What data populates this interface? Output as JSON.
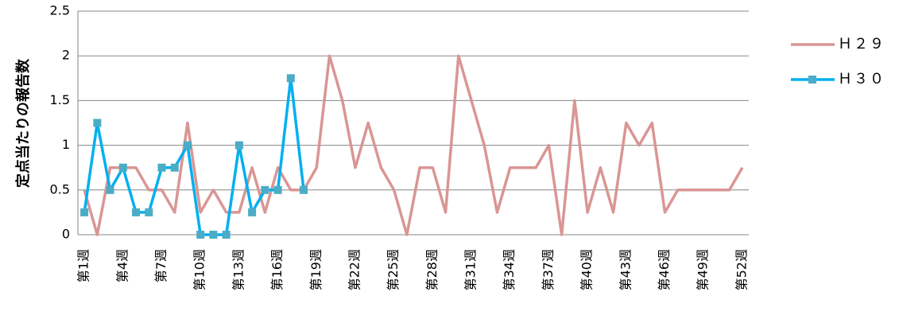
{
  "chart_data": {
    "type": "line",
    "y_label": "定点当たりの報告数",
    "categories": [
      "第1週",
      null,
      null,
      "第4週",
      null,
      null,
      "第7週",
      null,
      null,
      "第10週",
      null,
      null,
      "第13週",
      null,
      null,
      "第16週",
      null,
      null,
      "第19週",
      null,
      null,
      "第22週",
      null,
      null,
      "第25週",
      null,
      null,
      "第28週",
      null,
      null,
      "第31週",
      null,
      null,
      "第34週",
      null,
      null,
      "第37週",
      null,
      null,
      "第40週",
      null,
      null,
      "第43週",
      null,
      null,
      "第46週",
      null,
      null,
      "第49週",
      null,
      null,
      "第52週"
    ],
    "series": [
      {
        "name": "Ｈ２９",
        "color": "#d99694",
        "marker": false,
        "values": [
          0.5,
          0,
          0.75,
          0.75,
          0.75,
          0.5,
          0.5,
          0.25,
          1.25,
          0.25,
          0.5,
          0.25,
          0.25,
          0.75,
          0.25,
          0.75,
          0.5,
          0.5,
          0.75,
          2,
          1.5,
          0.75,
          1.25,
          0.75,
          0.5,
          0,
          0.75,
          0.75,
          0.25,
          2,
          1.5,
          1,
          0.25,
          0.75,
          0.75,
          0.75,
          1,
          0,
          1.5,
          0.25,
          0.75,
          0.25,
          1.25,
          1,
          1.25,
          0.25,
          0.5,
          0.5,
          0.5,
          0.5,
          0.5,
          0.75
        ]
      },
      {
        "name": "Ｈ３０",
        "color": "#00b0f0",
        "marker": true,
        "marker_color": "#4bacc6",
        "values": [
          0.25,
          1.25,
          0.5,
          0.75,
          0.25,
          0.25,
          0.75,
          0.75,
          1,
          0,
          0,
          0,
          1,
          0.25,
          0.5,
          0.5,
          1.75,
          0.5,
          null,
          null,
          null,
          null,
          null,
          null,
          null,
          null,
          null,
          null,
          null,
          null,
          null,
          null,
          null,
          null,
          null,
          null,
          null,
          null,
          null,
          null,
          null,
          null,
          null,
          null,
          null,
          null,
          null,
          null,
          null,
          null,
          null,
          null
        ]
      }
    ],
    "ylim": [
      0,
      2.5
    ],
    "yticks": [
      0,
      0.5,
      1,
      1.5,
      2,
      2.5
    ],
    "grid": true,
    "legend": "right"
  }
}
